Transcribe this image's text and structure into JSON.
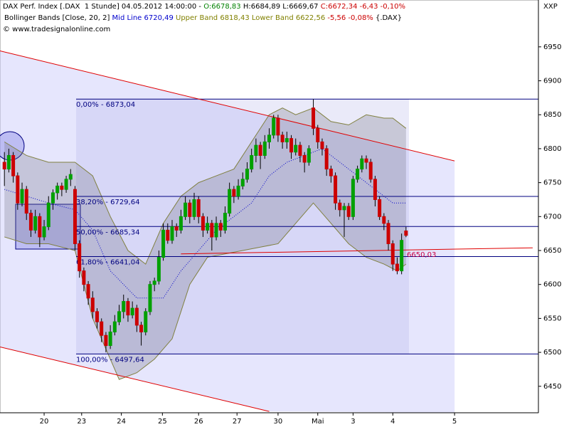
{
  "header": {
    "lines": [
      [
        {
          "text": "DAX Perf. Index [.DAX  1 Stunde] 04.05.2012 14:00:00 - ",
          "color": "#000000"
        },
        {
          "text": "O:6678,83",
          "color": "#008000"
        },
        {
          "text": " H:6684,89 L:6669,67 ",
          "color": "#000000"
        },
        {
          "text": "C:6672,34 -6,43 -0,10%",
          "color": "#cc0000"
        }
      ],
      [
        {
          "text": "Bollinger Bands [Close, 20, 2] ",
          "color": "#000000"
        },
        {
          "text": "Mid Line 6720,49 ",
          "color": "#0000cc"
        },
        {
          "text": "Upper Band 6818,43 Lower Band 6622,56 ",
          "color": "#808000"
        },
        {
          "text": "-5,56 -0,08% ",
          "color": "#cc0000"
        },
        {
          "text": "{.DAX}",
          "color": "#000000"
        }
      ],
      [
        {
          "text": "© www.tradesignalonline.com",
          "color": "#000000"
        }
      ]
    ],
    "corner_label": "XXP"
  },
  "chart_data": {
    "type": "candlestick",
    "up_color": "#00a000",
    "down_color": "#cc0000",
    "xlim": [
      -1,
      121
    ],
    "ylim": [
      6411,
      7019
    ],
    "yticks": [
      6450,
      6500,
      6550,
      6600,
      6650,
      6700,
      6750,
      6800,
      6850,
      6900,
      6950
    ],
    "xticks": [
      {
        "value": 9,
        "label": "20"
      },
      {
        "value": 17.5,
        "label": "23"
      },
      {
        "value": 26.5,
        "label": "24"
      },
      {
        "value": 35.8,
        "label": "25"
      },
      {
        "value": 44,
        "label": "26"
      },
      {
        "value": 52.7,
        "label": "27"
      },
      {
        "value": 62,
        "label": "30"
      },
      {
        "value": 71,
        "label": "Mai"
      },
      {
        "value": 79,
        "label": "3"
      },
      {
        "value": 88,
        "label": "4"
      },
      {
        "value": 102,
        "label": "5"
      }
    ],
    "candles": [
      [
        6780,
        6795,
        6745,
        6770
      ],
      [
        6770,
        6800,
        6765,
        6790
      ],
      [
        6790,
        6795,
        6750,
        6760
      ],
      [
        6760,
        6765,
        6710,
        6720
      ],
      [
        6720,
        6750,
        6715,
        6740
      ],
      [
        6740,
        6745,
        6695,
        6705
      ],
      [
        6705,
        6710,
        6670,
        6680
      ],
      [
        6680,
        6710,
        6675,
        6700
      ],
      [
        6700,
        6705,
        6655,
        6670
      ],
      [
        6670,
        6695,
        6665,
        6685
      ],
      [
        6685,
        6730,
        6680,
        6720
      ],
      [
        6720,
        6740,
        6710,
        6735
      ],
      [
        6735,
        6750,
        6725,
        6745
      ],
      [
        6745,
        6750,
        6730,
        6740
      ],
      [
        6740,
        6760,
        6735,
        6755
      ],
      [
        6755,
        6770,
        6745,
        6762
      ],
      [
        6740,
        6745,
        6650,
        6660
      ],
      [
        6660,
        6665,
        6610,
        6620
      ],
      [
        6620,
        6625,
        6590,
        6600
      ],
      [
        6600,
        6605,
        6570,
        6580
      ],
      [
        6580,
        6590,
        6550,
        6560
      ],
      [
        6560,
        6565,
        6535,
        6545
      ],
      [
        6545,
        6550,
        6515,
        6525
      ],
      [
        6525,
        6530,
        6500,
        6510
      ],
      [
        6510,
        6540,
        6505,
        6530
      ],
      [
        6530,
        6555,
        6525,
        6545
      ],
      [
        6545,
        6570,
        6540,
        6560
      ],
      [
        6560,
        6585,
        6550,
        6575
      ],
      [
        6575,
        6580,
        6545,
        6555
      ],
      [
        6555,
        6575,
        6550,
        6565
      ],
      [
        6565,
        6570,
        6530,
        6540
      ],
      [
        6540,
        6545,
        6510,
        6530
      ],
      [
        6530,
        6565,
        6525,
        6560
      ],
      [
        6560,
        6605,
        6555,
        6600
      ],
      [
        6600,
        6610,
        6590,
        6605
      ],
      [
        6605,
        6650,
        6600,
        6640
      ],
      [
        6640,
        6690,
        6635,
        6680
      ],
      [
        6680,
        6690,
        6660,
        6665
      ],
      [
        6665,
        6695,
        6660,
        6685
      ],
      [
        6685,
        6690,
        6670,
        6680
      ],
      [
        6680,
        6710,
        6675,
        6700
      ],
      [
        6700,
        6730,
        6695,
        6720
      ],
      [
        6720,
        6725,
        6690,
        6700
      ],
      [
        6700,
        6735,
        6695,
        6725
      ],
      [
        6725,
        6730,
        6690,
        6700
      ],
      [
        6700,
        6705,
        6670,
        6680
      ],
      [
        6680,
        6700,
        6675,
        6690
      ],
      [
        6690,
        6695,
        6650,
        6670
      ],
      [
        6670,
        6700,
        6665,
        6690
      ],
      [
        6690,
        6695,
        6670,
        6680
      ],
      [
        6680,
        6715,
        6675,
        6705
      ],
      [
        6705,
        6750,
        6700,
        6740
      ],
      [
        6740,
        6745,
        6720,
        6730
      ],
      [
        6730,
        6755,
        6725,
        6745
      ],
      [
        6745,
        6765,
        6740,
        6755
      ],
      [
        6755,
        6780,
        6750,
        6770
      ],
      [
        6770,
        6800,
        6765,
        6790
      ],
      [
        6790,
        6815,
        6780,
        6805
      ],
      [
        6805,
        6810,
        6770,
        6790
      ],
      [
        6790,
        6820,
        6785,
        6810
      ],
      [
        6810,
        6830,
        6800,
        6820
      ],
      [
        6820,
        6850,
        6815,
        6845
      ],
      [
        6845,
        6850,
        6810,
        6820
      ],
      [
        6820,
        6825,
        6800,
        6810
      ],
      [
        6810,
        6825,
        6800,
        6815
      ],
      [
        6815,
        6820,
        6785,
        6795
      ],
      [
        6795,
        6815,
        6790,
        6805
      ],
      [
        6805,
        6810,
        6780,
        6790
      ],
      [
        6790,
        6795,
        6765,
        6780
      ],
      [
        6780,
        6805,
        6775,
        6800
      ],
      [
        6860,
        6873,
        6820,
        6830
      ],
      [
        6830,
        6835,
        6800,
        6810
      ],
      [
        6810,
        6815,
        6790,
        6800
      ],
      [
        6800,
        6805,
        6760,
        6770
      ],
      [
        6770,
        6775,
        6750,
        6760
      ],
      [
        6760,
        6765,
        6710,
        6720
      ],
      [
        6720,
        6725,
        6700,
        6710
      ],
      [
        6710,
        6720,
        6670,
        6715
      ],
      [
        6715,
        6720,
        6695,
        6700
      ],
      [
        6700,
        6760,
        6695,
        6755
      ],
      [
        6755,
        6775,
        6750,
        6770
      ],
      [
        6770,
        6790,
        6765,
        6785
      ],
      [
        6785,
        6790,
        6770,
        6780
      ],
      [
        6780,
        6785,
        6750,
        6755
      ],
      [
        6755,
        6760,
        6715,
        6725
      ],
      [
        6725,
        6730,
        6695,
        6700
      ],
      [
        6700,
        6705,
        6680,
        6690
      ],
      [
        6690,
        6695,
        6650,
        6660
      ],
      [
        6660,
        6665,
        6620,
        6630
      ],
      [
        6630,
        6640,
        6615,
        6620
      ],
      [
        6620,
        6675,
        6615,
        6665
      ],
      [
        6678.83,
        6684.89,
        6669.67,
        6672.34
      ]
    ],
    "bollinger": {
      "upper": {
        "color": "#808040",
        "x": [
          0,
          5,
          10,
          16,
          20,
          24,
          28,
          32,
          36,
          40,
          44,
          48,
          52,
          56,
          60,
          63,
          66,
          70,
          74,
          78,
          82,
          86,
          88,
          91
        ],
        "values": [
          6810,
          6790,
          6780,
          6780,
          6760,
          6700,
          6650,
          6630,
          6690,
          6730,
          6750,
          6760,
          6770,
          6810,
          6850,
          6860,
          6850,
          6860,
          6840,
          6835,
          6850,
          6845,
          6845,
          6830
        ]
      },
      "mid": {
        "color": "#0000cc",
        "x": [
          0,
          10,
          16,
          20,
          24,
          30,
          36,
          40,
          44,
          48,
          52,
          56,
          60,
          64,
          68,
          72,
          76,
          80,
          84,
          88,
          91
        ],
        "values": [
          6740,
          6720,
          6710,
          6680,
          6620,
          6580,
          6580,
          6620,
          6650,
          6680,
          6700,
          6720,
          6760,
          6780,
          6790,
          6800,
          6780,
          6760,
          6740,
          6720,
          6720
        ]
      },
      "lower": {
        "color": "#808040",
        "x": [
          0,
          5,
          10,
          16,
          20,
          24,
          26,
          30,
          34,
          38,
          42,
          46,
          50,
          54,
          58,
          62,
          66,
          70,
          74,
          78,
          82,
          86,
          89,
          91
        ],
        "values": [
          6670,
          6660,
          6660,
          6650,
          6550,
          6490,
          6460,
          6470,
          6490,
          6520,
          6600,
          6640,
          6645,
          6650,
          6655,
          6660,
          6690,
          6720,
          6690,
          6660,
          6640,
          6630,
          6620,
          6630
        ]
      }
    },
    "fib_levels": [
      {
        "label": "0,00% - 6873,04",
        "value": 6873.04
      },
      {
        "label": "38,20% - 6729,64",
        "value": 6729.64
      },
      {
        "label": "50,00% - 6685,34",
        "value": 6685.34
      },
      {
        "label": "61,80% - 6641,04",
        "value": 6641.04
      },
      {
        "label": "100,00% - 6497,64",
        "value": 6497.64
      }
    ],
    "fib_color": "#000080",
    "trendlines": [
      {
        "color": "#e00000",
        "x": [
          -1,
          102
        ],
        "values": [
          6944,
          6782
        ]
      },
      {
        "color": "#e00000",
        "x": [
          -1,
          60
        ],
        "values": [
          6508,
          6413
        ]
      },
      {
        "color": "#e00000",
        "x": [
          40,
          119.7
        ],
        "values": [
          6645,
          6654
        ]
      }
    ],
    "price_marker": {
      "value": 6650.03,
      "label": "6650,03",
      "color": "#cc0044"
    }
  }
}
